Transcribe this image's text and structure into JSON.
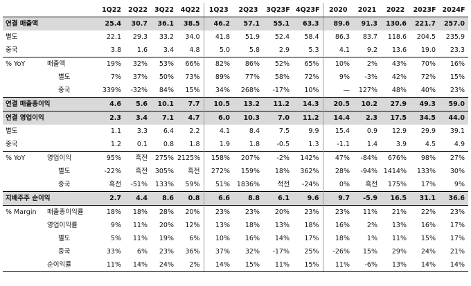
{
  "columns": [
    "1Q22",
    "2Q22",
    "3Q22",
    "4Q22",
    "1Q23",
    "2Q23",
    "3Q23F",
    "4Q23F",
    "2020",
    "2021",
    "2022",
    "2023F",
    "2024F"
  ],
  "rows": [
    {
      "label": "연결 매출액",
      "sub": "",
      "style": "bold",
      "values": [
        "25.4",
        "30.7",
        "36.1",
        "38.5",
        "46.2",
        "57.1",
        "55.1",
        "63.3",
        "89.6",
        "91.3",
        "130.6",
        "221.7",
        "257.0"
      ]
    },
    {
      "label": "별도",
      "sub": "",
      "style": "indent",
      "values": [
        "22.1",
        "29.3",
        "33.2",
        "34.0",
        "41.8",
        "51.9",
        "52.4",
        "58.4",
        "86.3",
        "83.7",
        "118.6",
        "204.5",
        "235.9"
      ]
    },
    {
      "label": "중국",
      "sub": "",
      "style": "indent",
      "values": [
        "3.8",
        "1.6",
        "3.4",
        "4.8",
        "5.0",
        "5.8",
        "2.9",
        "5.3",
        "4.1",
        "9.2",
        "13.6",
        "19.0",
        "23.3"
      ]
    },
    {
      "label": "% YoY",
      "sub": "매출액",
      "style": "group-start",
      "values": [
        "19%",
        "32%",
        "53%",
        "66%",
        "82%",
        "86%",
        "52%",
        "65%",
        "10%",
        "2%",
        "43%",
        "70%",
        "16%"
      ]
    },
    {
      "label": "",
      "sub": "별도",
      "style": "sub2",
      "values": [
        "7%",
        "37%",
        "50%",
        "73%",
        "89%",
        "77%",
        "58%",
        "72%",
        "9%",
        "-3%",
        "42%",
        "72%",
        "15%"
      ]
    },
    {
      "label": "",
      "sub": "중국",
      "style": "sub2",
      "values": [
        "339%",
        "-32%",
        "84%",
        "15%",
        "34%",
        "268%",
        "-17%",
        "10%",
        "—",
        "127%",
        "48%",
        "40%",
        "23%"
      ]
    },
    {
      "label": "연결 매출총이익",
      "sub": "",
      "style": "bold",
      "values": [
        "4.6",
        "5.6",
        "10.1",
        "7.7",
        "10.5",
        "13.2",
        "11.2",
        "14.3",
        "20.5",
        "10.2",
        "27.9",
        "49.3",
        "59.0"
      ]
    },
    {
      "label": "연결 영업이익",
      "sub": "",
      "style": "bold",
      "values": [
        "2.3",
        "3.4",
        "7.1",
        "4.7",
        "6.0",
        "10.3",
        "7.0",
        "11.2",
        "14.4",
        "2.3",
        "17.5",
        "34.5",
        "44.0"
      ]
    },
    {
      "label": "별도",
      "sub": "",
      "style": "indent",
      "values": [
        "1.1",
        "3.3",
        "6.4",
        "2.2",
        "4.1",
        "8.4",
        "7.5",
        "9.9",
        "15.4",
        "0.9",
        "12.9",
        "29.9",
        "39.1"
      ]
    },
    {
      "label": "중국",
      "sub": "",
      "style": "indent",
      "values": [
        "1.2",
        "0.1",
        "0.8",
        "1.8",
        "1.9",
        "1.8",
        "-0.5",
        "1.3",
        "-1.1",
        "1.4",
        "3.9",
        "4.5",
        "4.9"
      ]
    },
    {
      "label": "% YoY",
      "sub": "영업이익",
      "style": "group-start",
      "values": [
        "95%",
        "흑전",
        "275%",
        "2125%",
        "158%",
        "207%",
        "-2%",
        "142%",
        "47%",
        "-84%",
        "676%",
        "98%",
        "27%"
      ]
    },
    {
      "label": "",
      "sub": "별도",
      "style": "sub2",
      "values": [
        "-22%",
        "흑전",
        "305%",
        "흑전",
        "272%",
        "159%",
        "18%",
        "362%",
        "28%",
        "-94%",
        "1414%",
        "133%",
        "30%"
      ]
    },
    {
      "label": "",
      "sub": "중국",
      "style": "sub2",
      "values": [
        "흑전",
        "-51%",
        "133%",
        "59%",
        "51%",
        "1836%",
        "적전",
        "-24%",
        "0%",
        "흑전",
        "175%",
        "17%",
        "9%"
      ]
    },
    {
      "label": "지배주주 순이익",
      "sub": "",
      "style": "bold",
      "values": [
        "2.7",
        "4.4",
        "8.6",
        "0.8",
        "6.6",
        "8.8",
        "6.1",
        "9.6",
        "9.7",
        "-5.9",
        "16.5",
        "31.1",
        "36.6"
      ]
    },
    {
      "label": "% Margin",
      "sub": "매출총이익률",
      "style": "group-start",
      "values": [
        "18%",
        "18%",
        "28%",
        "20%",
        "23%",
        "23%",
        "20%",
        "23%",
        "23%",
        "11%",
        "21%",
        "22%",
        "23%"
      ]
    },
    {
      "label": "",
      "sub": "영업이익률",
      "style": "sub1",
      "values": [
        "9%",
        "11%",
        "20%",
        "12%",
        "13%",
        "18%",
        "13%",
        "18%",
        "16%",
        "2%",
        "13%",
        "16%",
        "17%"
      ]
    },
    {
      "label": "",
      "sub": "별도",
      "style": "sub2",
      "values": [
        "5%",
        "11%",
        "19%",
        "6%",
        "10%",
        "16%",
        "14%",
        "17%",
        "18%",
        "1%",
        "11%",
        "15%",
        "17%"
      ]
    },
    {
      "label": "",
      "sub": "중국",
      "style": "sub2",
      "values": [
        "33%",
        "6%",
        "23%",
        "36%",
        "37%",
        "32%",
        "-17%",
        "25%",
        "-26%",
        "15%",
        "29%",
        "24%",
        "21%"
      ]
    },
    {
      "label": "",
      "sub": "순이익률",
      "style": "sub1",
      "values": [
        "11%",
        "14%",
        "24%",
        "2%",
        "14%",
        "15%",
        "11%",
        "15%",
        "11%",
        "-6%",
        "13%",
        "14%",
        "14%"
      ]
    }
  ]
}
